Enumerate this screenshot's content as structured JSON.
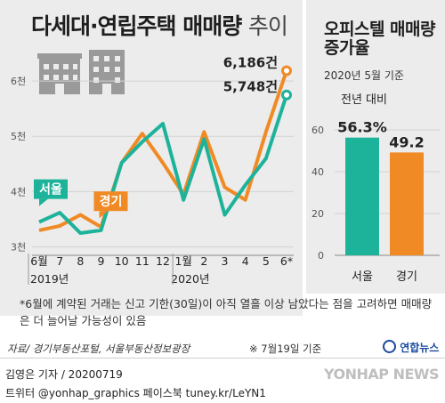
{
  "title": {
    "main": "다세대·연립주택 매매량",
    "suffix": "추이"
  },
  "side_title": "오피스텔 매매량 증가율",
  "side_note": "2020년 5월 기준",
  "side_bar_caption": "전년 대비",
  "note": "*6월에 계약된 거래는 신고 기한(30일)이 아직 열흘 이상 남았다는 점을 고려하면 매매량은 더 늘어날 가능성이 있음",
  "source": "자료/ 경기부동산포털, 서울부동산정보광장",
  "asof": "※ 7월19일 기준",
  "brand_small": "연합뉴스",
  "credit_line1": "김영은 기자 / 20200719",
  "credit_line2": "트위터 @yonhap_graphics  페이스북 tuney.kr/LeYN1",
  "brand_big": "YONHAP NEWS",
  "colors": {
    "seoul": "#1db39a",
    "gyeonggi": "#f08a24",
    "panel": "#ececec"
  },
  "chart_data": [
    {
      "type": "line",
      "title": "다세대·연립주택 매매량 추이",
      "x": [
        "6월",
        "7",
        "8",
        "9",
        "10",
        "11",
        "12",
        "1월",
        "2",
        "3",
        "4",
        "5",
        "6*"
      ],
      "year_labels": [
        "2019년",
        "2020년"
      ],
      "y_ticks": [
        "3천",
        "4천",
        "5천",
        "6천"
      ],
      "ylim": [
        2800,
        6500
      ],
      "series": [
        {
          "name": "서울",
          "color": "#1db39a",
          "values": [
            3450,
            3620,
            3250,
            3300,
            4520,
            4900,
            5230,
            3850,
            4950,
            3580,
            4120,
            4600,
            5748
          ]
        },
        {
          "name": "경기",
          "color": "#f08a24",
          "values": [
            3300,
            3380,
            3580,
            3360,
            4520,
            5050,
            4520,
            3950,
            5080,
            4080,
            3850,
            5080,
            6186
          ]
        }
      ],
      "annotations": [
        {
          "series": "경기",
          "label": "6,186건"
        },
        {
          "series": "서울",
          "label": "5,748건"
        }
      ]
    },
    {
      "type": "bar",
      "title": "오피스텔 매매량 증가율",
      "categories": [
        "서울",
        "경기"
      ],
      "values": [
        56.3,
        49.2
      ],
      "value_labels": [
        "56.3%",
        "49.2"
      ],
      "y_ticks": [
        "0",
        "20",
        "40",
        "60"
      ],
      "ylim": [
        0,
        60
      ],
      "colors": [
        "#1db39a",
        "#f08a24"
      ]
    }
  ]
}
